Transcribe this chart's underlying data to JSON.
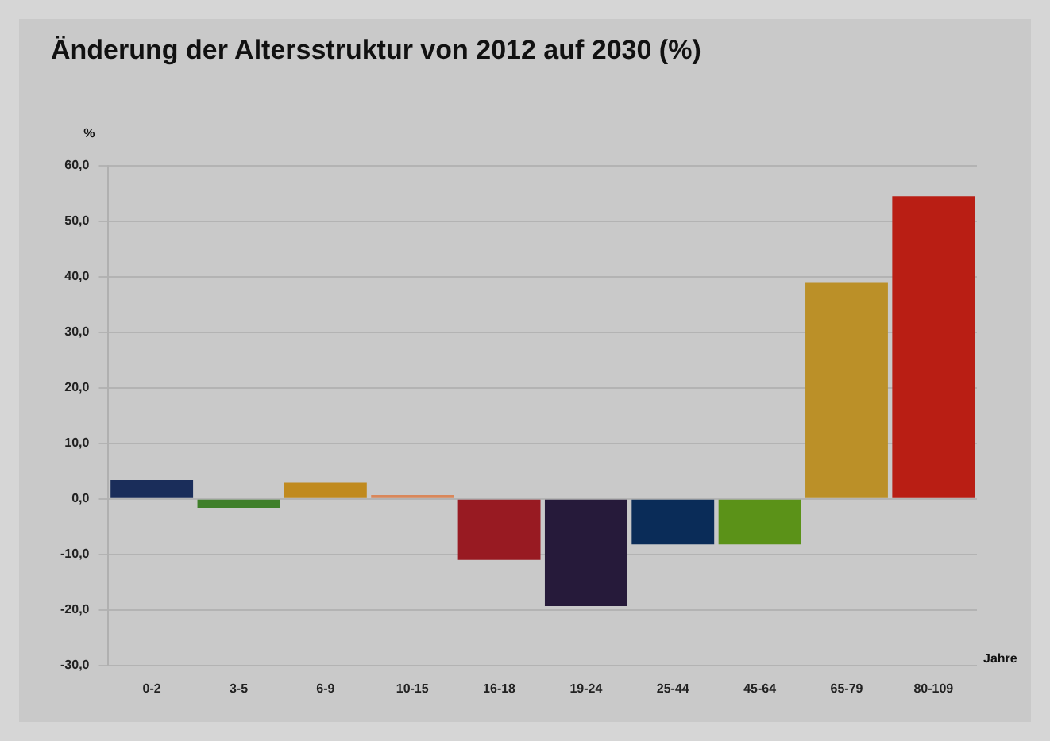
{
  "chart_data": {
    "type": "bar",
    "title": "Änderung der Altersstruktur von 2012 auf 2030 (%)",
    "xlabel": "Jahre",
    "ylabel": "%",
    "categories": [
      "0-2",
      "3-5",
      "6-9",
      "10-15",
      "16-18",
      "19-24",
      "25-44",
      "45-64",
      "65-79",
      "80-109"
    ],
    "values": [
      3.4,
      -1.6,
      2.9,
      0.7,
      -11.0,
      -19.3,
      -8.2,
      -8.2,
      38.9,
      54.5
    ],
    "colors": [
      "#1a2d5a",
      "#3f7f2a",
      "#c08a1e",
      "#d9875a",
      "#981a22",
      "#261a3a",
      "#0a2c58",
      "#5b9218",
      "#bb9028",
      "#b91e14"
    ],
    "ylim": [
      -30,
      60
    ],
    "yticks": [
      {
        "value": -30,
        "label": "-30,0"
      },
      {
        "value": -20,
        "label": "-20,0"
      },
      {
        "value": -10,
        "label": "-10,0"
      },
      {
        "value": 0,
        "label": "0,0"
      },
      {
        "value": 10,
        "label": "10,0"
      },
      {
        "value": 20,
        "label": "20,0"
      },
      {
        "value": 30,
        "label": "30,0"
      },
      {
        "value": 40,
        "label": "40,0"
      },
      {
        "value": 50,
        "label": "50,0"
      },
      {
        "value": 60,
        "label": "60,0"
      }
    ],
    "grid": "y",
    "legend": false
  }
}
